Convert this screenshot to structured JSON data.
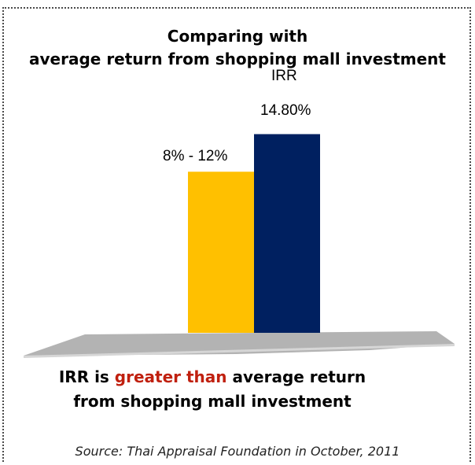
{
  "title": {
    "line1": "Comparing with",
    "line2": "average return from shopping mall investment"
  },
  "chart_data": {
    "type": "bar",
    "title": "Comparing with average return from shopping mall investment",
    "categories": [
      "8% - 12%",
      "IRR"
    ],
    "series": [
      {
        "values": [
          12,
          14.8
        ]
      }
    ],
    "data_labels": [
      "8% - 12%",
      "14.80%"
    ],
    "category_labels": [
      "",
      "IRR"
    ],
    "colors": [
      "#ffc000",
      "#002060"
    ],
    "ylim": [
      0,
      16
    ],
    "grid": false,
    "legend": "none"
  },
  "conclusion": {
    "line1_prefix": "IRR is ",
    "line1_highlight": "greater than",
    "line1_suffix": " average return",
    "line2": "from shopping mall investment"
  },
  "source": {
    "prefix": "Source:",
    "text": " Thai Appraisal Foundation in October, 2011"
  },
  "colors": {
    "highlight": "#c0200f",
    "floor": "#b3b3b3"
  }
}
